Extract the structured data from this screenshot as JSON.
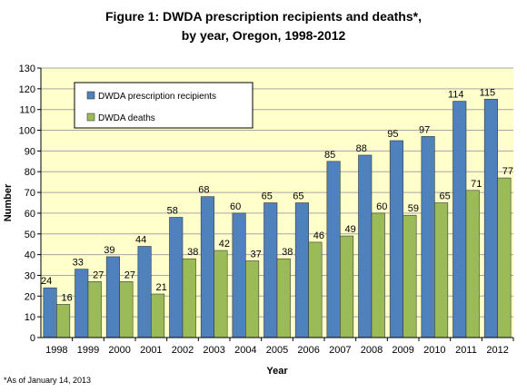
{
  "title_line1": "Figure 1: DWDA prescription recipients and deaths*,",
  "title_line2": "by year, Oregon, 1998-2012",
  "footnote": "*As of January 14, 2013",
  "colors": {
    "plot_bg": "#ffffcc",
    "recipients": "#4f81bd",
    "deaths": "#9bbb59",
    "gridline": "#a6a6a6"
  },
  "chart_data": {
    "type": "bar",
    "title": "Figure 1: DWDA prescription recipients and deaths*, by year, Oregon, 1998-2012",
    "xlabel": "Year",
    "ylabel": "Number",
    "ylim": [
      0,
      130
    ],
    "ytick_step": 10,
    "grid": true,
    "legend_position": "top-left",
    "categories": [
      "1998",
      "1999",
      "2000",
      "2001",
      "2002",
      "2003",
      "2004",
      "2005",
      "2006",
      "2007",
      "2008",
      "2009",
      "2010",
      "2011",
      "2012"
    ],
    "series": [
      {
        "name": "DWDA prescription recipients",
        "values": [
          24,
          33,
          39,
          44,
          58,
          68,
          60,
          65,
          65,
          85,
          88,
          95,
          97,
          114,
          115
        ]
      },
      {
        "name": "DWDA deaths",
        "values": [
          16,
          27,
          27,
          21,
          38,
          42,
          37,
          38,
          46,
          49,
          60,
          59,
          65,
          71,
          77
        ]
      }
    ]
  }
}
